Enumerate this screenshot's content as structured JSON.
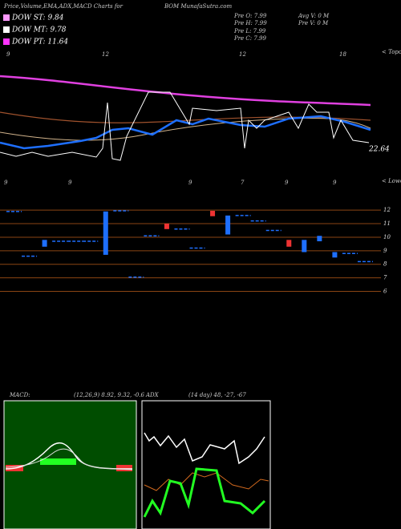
{
  "header": {
    "title": "Price,Volume,EMA,ADX,MACD Charts for",
    "site": "BOM MunafaSutra.com"
  },
  "legend": [
    "DOW ST: 9.84",
    "DOW MT: 9.78",
    "DOW PT: 11.64"
  ],
  "stats": [
    "Pre  O: 7.99",
    "Pre  H: 7.99",
    "Pre  L: 7.99",
    "Pre  C: 7.99"
  ],
  "volume_stats": [
    "Avg V: 0  M",
    "Pre  V: 0  M"
  ],
  "axis_top": [
    "9",
    "12",
    "12",
    "18",
    "< Topo"
  ],
  "axis_bottom": [
    "9",
    "9",
    "9",
    "7",
    "9",
    "9",
    "< Lowo"
  ],
  "last_price": "22.64",
  "macd": {
    "label": "MACD:",
    "params": "(12,26,9) 8.92, 9.32, -0.6"
  },
  "adx": {
    "label": "ADX",
    "params": "(14 day) 48, -27, -67"
  },
  "chart_data": {
    "type": "candlestick",
    "ylim": [
      5.5,
      12.6
    ],
    "yticks": [
      6,
      7,
      8,
      9,
      10,
      11,
      12
    ],
    "candles": [
      {
        "open": 11.9,
        "close": 11.9
      },
      {
        "open": 8.6,
        "close": 8.6
      },
      {
        "open": 9.8,
        "close": 9.3
      },
      {
        "open": 9.7,
        "close": 9.7
      },
      {
        "open": 9.7,
        "close": 9.7
      },
      {
        "open": 9.7,
        "close": 9.7
      },
      {
        "open": 11.9,
        "close": 8.7
      },
      {
        "open": 11.95,
        "close": 11.95
      },
      {
        "open": 7.05,
        "close": 7.05
      },
      {
        "open": 10.1,
        "close": 10.1
      },
      {
        "open": 10.6,
        "close": 11.0
      },
      {
        "open": 10.6,
        "close": 10.6
      },
      {
        "open": 9.2,
        "close": 9.2
      },
      {
        "open": 11.55,
        "close": 11.95
      },
      {
        "open": 11.6,
        "close": 10.2
      },
      {
        "open": 11.6,
        "close": 11.6
      },
      {
        "open": 11.2,
        "close": 11.2
      },
      {
        "open": 10.5,
        "close": 10.5
      },
      {
        "open": 9.3,
        "close": 9.8
      },
      {
        "open": 9.8,
        "close": 8.9
      },
      {
        "open": 10.1,
        "close": 9.7
      },
      {
        "open": 8.9,
        "close": 8.5
      },
      {
        "open": 8.8,
        "close": 8.8
      },
      {
        "open": 8.2,
        "close": 8.2
      }
    ]
  }
}
